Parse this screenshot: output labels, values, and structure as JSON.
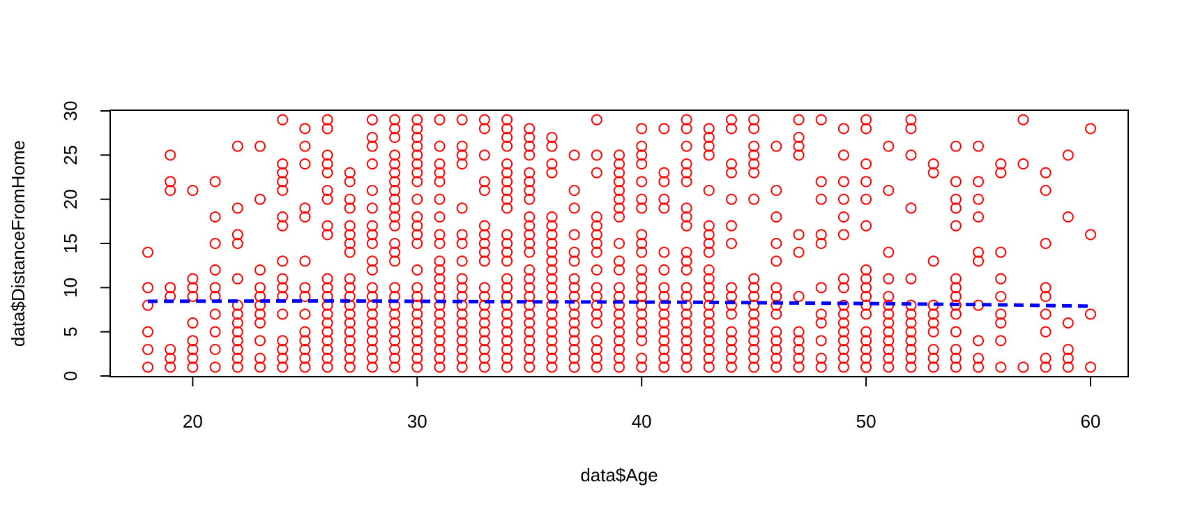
{
  "chart_data": {
    "type": "scatter",
    "title": "",
    "xlabel": "data$Age",
    "ylabel": "data$DistanceFromHome",
    "xlim": [
      18,
      60
    ],
    "ylim": [
      0,
      30
    ],
    "x_ticks": [
      "20",
      "30",
      "40",
      "50",
      "60"
    ],
    "y_ticks": [
      "0",
      "5",
      "10",
      "15",
      "20",
      "25",
      "30"
    ],
    "grid": false,
    "legend": "none",
    "marker": "open-circle",
    "point_color": "#ff0000",
    "points_by_age": {
      "18": [
        1,
        3,
        5,
        8,
        10,
        14
      ],
      "19": [
        1,
        2,
        3,
        9,
        10,
        21,
        22,
        25
      ],
      "20": [
        1,
        2,
        3,
        4,
        6,
        9,
        10,
        11,
        21
      ],
      "21": [
        1,
        3,
        5,
        7,
        9,
        10,
        12,
        15,
        18,
        22
      ],
      "22": [
        1,
        2,
        3,
        4,
        5,
        6,
        7,
        8,
        11,
        15,
        16,
        19,
        26
      ],
      "23": [
        1,
        2,
        4,
        6,
        7,
        8,
        9,
        10,
        12,
        20,
        26
      ],
      "24": [
        1,
        2,
        3,
        4,
        7,
        9,
        10,
        11,
        13,
        17,
        18,
        21,
        22,
        23,
        24,
        29
      ],
      "25": [
        1,
        2,
        3,
        4,
        5,
        7,
        9,
        10,
        13,
        18,
        19,
        24,
        26,
        28
      ],
      "26": [
        1,
        2,
        3,
        4,
        5,
        6,
        7,
        8,
        9,
        10,
        11,
        16,
        17,
        20,
        21,
        23,
        24,
        25,
        28,
        29
      ],
      "27": [
        1,
        2,
        3,
        4,
        5,
        6,
        7,
        8,
        9,
        10,
        11,
        14,
        15,
        16,
        17,
        19,
        20,
        22,
        23
      ],
      "28": [
        1,
        2,
        3,
        4,
        5,
        6,
        7,
        8,
        9,
        10,
        12,
        13,
        15,
        16,
        17,
        19,
        21,
        24,
        26,
        27,
        29
      ],
      "29": [
        1,
        2,
        3,
        4,
        5,
        6,
        7,
        8,
        9,
        10,
        13,
        14,
        15,
        17,
        18,
        19,
        20,
        21,
        22,
        23,
        24,
        25,
        27,
        28,
        29
      ],
      "30": [
        1,
        2,
        3,
        4,
        5,
        6,
        7,
        8,
        9,
        10,
        12,
        15,
        16,
        17,
        18,
        20,
        22,
        23,
        24,
        25,
        26,
        27,
        28,
        29
      ],
      "31": [
        1,
        2,
        3,
        4,
        5,
        6,
        7,
        8,
        9,
        10,
        11,
        12,
        13,
        15,
        16,
        18,
        20,
        22,
        23,
        24,
        26,
        29
      ],
      "32": [
        1,
        2,
        3,
        4,
        5,
        6,
        7,
        8,
        9,
        10,
        11,
        13,
        15,
        16,
        19,
        24,
        25,
        26,
        29
      ],
      "33": [
        1,
        2,
        3,
        4,
        5,
        6,
        7,
        8,
        9,
        10,
        13,
        14,
        15,
        16,
        17,
        21,
        22,
        25,
        28,
        29
      ],
      "34": [
        1,
        2,
        3,
        4,
        5,
        6,
        7,
        8,
        9,
        10,
        11,
        13,
        14,
        15,
        16,
        19,
        20,
        21,
        22,
        23,
        24,
        26,
        27,
        28,
        29
      ],
      "35": [
        1,
        2,
        3,
        4,
        5,
        6,
        7,
        8,
        9,
        10,
        11,
        12,
        14,
        15,
        16,
        17,
        18,
        20,
        21,
        22,
        23,
        25,
        26,
        27,
        28
      ],
      "36": [
        1,
        2,
        3,
        4,
        5,
        6,
        7,
        8,
        9,
        10,
        11,
        12,
        13,
        14,
        15,
        16,
        17,
        18,
        23,
        24,
        26,
        27
      ],
      "37": [
        1,
        2,
        3,
        4,
        5,
        6,
        7,
        8,
        9,
        10,
        11,
        13,
        14,
        16,
        19,
        21,
        25
      ],
      "38": [
        1,
        2,
        3,
        4,
        6,
        7,
        8,
        9,
        10,
        12,
        14,
        15,
        16,
        17,
        18,
        23,
        25,
        29
      ],
      "39": [
        1,
        2,
        3,
        4,
        5,
        6,
        7,
        8,
        9,
        10,
        12,
        13,
        15,
        18,
        19,
        20,
        21,
        22,
        23,
        24,
        25
      ],
      "40": [
        1,
        2,
        4,
        5,
        6,
        7,
        8,
        9,
        10,
        11,
        12,
        14,
        15,
        16,
        19,
        20,
        22,
        24,
        25,
        26,
        28
      ],
      "41": [
        1,
        2,
        3,
        4,
        5,
        6,
        7,
        8,
        9,
        10,
        12,
        14,
        19,
        20,
        22,
        23,
        28
      ],
      "42": [
        1,
        2,
        3,
        4,
        5,
        6,
        7,
        8,
        9,
        10,
        12,
        13,
        14,
        17,
        18,
        19,
        22,
        23,
        24,
        26,
        28,
        29
      ],
      "43": [
        1,
        2,
        3,
        4,
        5,
        6,
        7,
        8,
        9,
        10,
        11,
        12,
        14,
        15,
        16,
        17,
        21,
        25,
        26,
        27,
        28
      ],
      "44": [
        1,
        2,
        3,
        4,
        5,
        7,
        8,
        9,
        10,
        15,
        17,
        20,
        23,
        24,
        28,
        29
      ],
      "45": [
        1,
        2,
        3,
        4,
        5,
        6,
        7,
        8,
        9,
        10,
        11,
        20,
        23,
        24,
        25,
        26,
        28,
        29
      ],
      "46": [
        1,
        2,
        3,
        4,
        5,
        7,
        8,
        9,
        10,
        13,
        15,
        18,
        21,
        26
      ],
      "47": [
        1,
        2,
        3,
        4,
        5,
        9,
        14,
        16,
        25,
        26,
        27,
        29
      ],
      "48": [
        1,
        2,
        4,
        6,
        7,
        10,
        15,
        16,
        20,
        22,
        29
      ],
      "49": [
        1,
        2,
        3,
        4,
        5,
        6,
        7,
        8,
        10,
        11,
        16,
        18,
        20,
        22,
        25,
        28
      ],
      "50": [
        1,
        2,
        3,
        4,
        5,
        7,
        8,
        9,
        10,
        11,
        12,
        17,
        20,
        22,
        24,
        28,
        29
      ],
      "51": [
        1,
        2,
        3,
        4,
        5,
        6,
        7,
        8,
        9,
        11,
        14,
        21,
        26
      ],
      "52": [
        1,
        2,
        3,
        4,
        5,
        6,
        7,
        8,
        11,
        19,
        25,
        28,
        29
      ],
      "53": [
        1,
        2,
        3,
        5,
        6,
        7,
        8,
        13,
        23,
        24
      ],
      "54": [
        1,
        2,
        3,
        5,
        7,
        8,
        9,
        10,
        11,
        17,
        19,
        20,
        22,
        26
      ],
      "55": [
        1,
        2,
        4,
        8,
        13,
        14,
        18,
        20,
        22,
        26
      ],
      "56": [
        1,
        4,
        6,
        7,
        9,
        11,
        14,
        23,
        24
      ],
      "57": [
        1,
        24,
        29
      ],
      "58": [
        1,
        2,
        5,
        7,
        9,
        10,
        15,
        21,
        23
      ],
      "59": [
        1,
        2,
        3,
        6,
        18,
        25
      ],
      "60": [
        1,
        7,
        16,
        28
      ]
    },
    "trend_line": {
      "style": "dashed",
      "color": "#0000ff",
      "x": [
        18,
        26,
        34,
        42,
        50,
        56,
        60
      ],
      "y": [
        8.45,
        8.5,
        8.4,
        8.35,
        8.2,
        8.05,
        7.9
      ]
    }
  }
}
